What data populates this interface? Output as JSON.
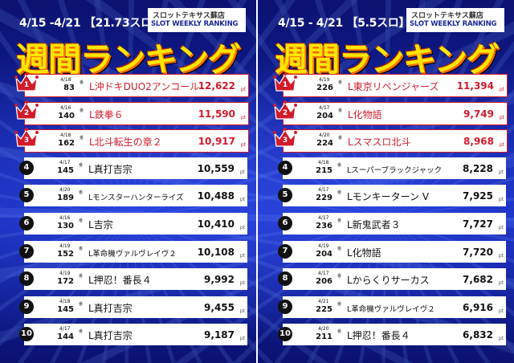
{
  "left": {
    "period": "4/15 -4/21 【21.73スロ】",
    "store_name": "スロットテキサス蘇店",
    "store_sub": "SLOT WEEKLY RANKING",
    "title": "週間ランキング",
    "rows": [
      {
        "rank": "1",
        "date": "4/18",
        "no": "83",
        "name": "L沖ドキDUO2アンコール",
        "value": "12,622",
        "unit": "pt",
        "crown": true,
        "small": false
      },
      {
        "rank": "2",
        "date": "4/16",
        "no": "140",
        "name": "L鉄拳６",
        "value": "11,590",
        "unit": "pt",
        "crown": true,
        "small": false
      },
      {
        "rank": "3",
        "date": "4/18",
        "no": "162",
        "name": "L北斗転生の章２",
        "value": "10,917",
        "unit": "pt",
        "crown": true,
        "small": false
      },
      {
        "rank": "4",
        "date": "4/17",
        "no": "145",
        "name": "L真打吉宗",
        "value": "10,559",
        "unit": "pt",
        "crown": false,
        "small": false
      },
      {
        "rank": "5",
        "date": "4/20",
        "no": "189",
        "name": "Lモンスターハンターライズ",
        "value": "10,488",
        "unit": "pt",
        "crown": false,
        "small": true
      },
      {
        "rank": "6",
        "date": "4/16",
        "no": "130",
        "name": "L吉宗",
        "value": "10,410",
        "unit": "pt",
        "crown": false,
        "small": false
      },
      {
        "rank": "7",
        "date": "4/19",
        "no": "152",
        "name": "L革命機ヴァルヴレイヴ２",
        "value": "10,108",
        "unit": "pt",
        "crown": false,
        "small": true
      },
      {
        "rank": "8",
        "date": "4/19",
        "no": "172",
        "name": "L押忍！番長４",
        "value": "9,992",
        "unit": "pt",
        "crown": false,
        "small": false
      },
      {
        "rank": "9",
        "date": "4/18",
        "no": "145",
        "name": "L真打吉宗",
        "value": "9,455",
        "unit": "pt",
        "crown": false,
        "small": false
      },
      {
        "rank": "10",
        "date": "4/17",
        "no": "144",
        "name": "L真打吉宗",
        "value": "9,187",
        "unit": "pt",
        "crown": false,
        "small": false
      }
    ]
  },
  "right": {
    "period": "4/15 - 4/21 【5.5スロ】",
    "store_name": "スロットテキサス蘇店",
    "store_sub": "SLOT WEEKLY RANKING",
    "title": "週間ランキング",
    "rows": [
      {
        "rank": "1",
        "date": "4/19",
        "no": "226",
        "name": "L東京リベンジャーズ",
        "value": "11,394",
        "unit": "pt",
        "crown": true,
        "small": false
      },
      {
        "rank": "2",
        "date": "4/17",
        "no": "204",
        "name": "L化物語",
        "value": "9,749",
        "unit": "pt",
        "crown": true,
        "small": false
      },
      {
        "rank": "3",
        "date": "4/20",
        "no": "224",
        "name": "Lスマスロ北斗",
        "value": "8,968",
        "unit": "pt",
        "crown": true,
        "small": false
      },
      {
        "rank": "4",
        "date": "4/18",
        "no": "215",
        "name": "Lスーパーブラックジャック",
        "value": "8,228",
        "unit": "pt",
        "crown": false,
        "small": true
      },
      {
        "rank": "5",
        "date": "4/17",
        "no": "229",
        "name": "Lモンキーターン V",
        "value": "7,925",
        "unit": "pt",
        "crown": false,
        "small": false
      },
      {
        "rank": "6",
        "date": "4/17",
        "no": "236",
        "name": "L新鬼武者３",
        "value": "7,727",
        "unit": "pt",
        "crown": false,
        "small": false
      },
      {
        "rank": "7",
        "date": "4/19",
        "no": "204",
        "name": "L化物語",
        "value": "7,720",
        "unit": "pt",
        "crown": false,
        "small": false
      },
      {
        "rank": "8",
        "date": "4/17",
        "no": "206",
        "name": "Lからくりサーカス",
        "value": "7,682",
        "unit": "pt",
        "crown": false,
        "small": false
      },
      {
        "rank": "9",
        "date": "4/21",
        "no": "225",
        "name": "L革命機ヴァルヴレイヴ２",
        "value": "6,916",
        "unit": "pt",
        "crown": false,
        "small": true
      },
      {
        "rank": "10",
        "date": "4/20",
        "no": "211",
        "name": "L押忍！番長４",
        "value": "6,832",
        "unit": "pt",
        "crown": false,
        "small": false
      }
    ]
  },
  "machine_label": "番",
  "colors": {
    "accent": "#d21a2a",
    "title": "#ffe600",
    "background": "#0d1678"
  }
}
